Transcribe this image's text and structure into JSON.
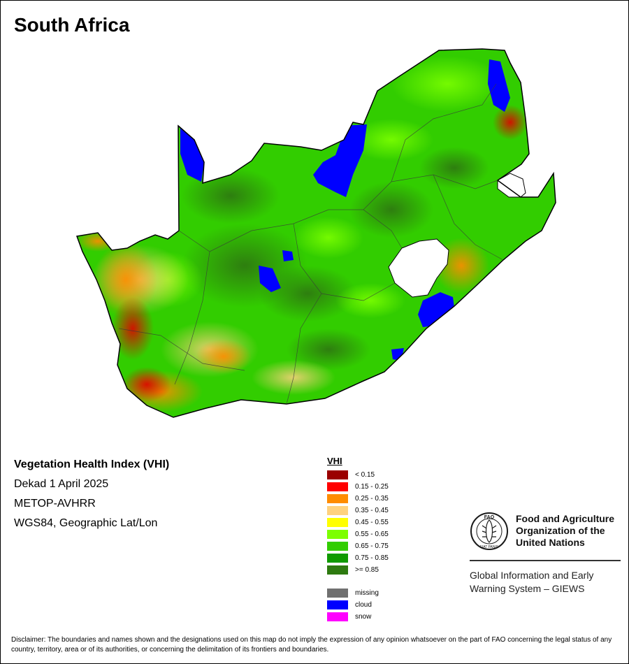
{
  "title": "South Africa",
  "info": {
    "heading": "Vegetation Health Index (VHI)",
    "date": "Dekad 1 April 2025",
    "sensor": "METOP-AVHRR",
    "projection": "WGS84, Geographic Lat/Lon"
  },
  "legend": {
    "title": "VHI",
    "classes": [
      {
        "label": "< 0.15",
        "color": "#9b0000"
      },
      {
        "label": "0.15 - 0.25",
        "color": "#ff0000"
      },
      {
        "label": "0.25 - 0.35",
        "color": "#ff8c00"
      },
      {
        "label": "0.35 - 0.45",
        "color": "#ffd27f"
      },
      {
        "label": "0.45 - 0.55",
        "color": "#ffff00"
      },
      {
        "label": "0.55 - 0.65",
        "color": "#7cff00"
      },
      {
        "label": "0.65 - 0.75",
        "color": "#32cd00"
      },
      {
        "label": "0.75 - 0.85",
        "color": "#109a00"
      },
      {
        "label": ">= 0.85",
        "color": "#2e7a10"
      }
    ],
    "special": [
      {
        "label": "missing",
        "color": "#707070"
      },
      {
        "label": "cloud",
        "color": "#0000ff"
      },
      {
        "label": "snow",
        "color": "#ff00ff"
      }
    ]
  },
  "org": {
    "name_line1": "Food and Agriculture",
    "name_line2": "Organization of the",
    "name_line3": "United Nations",
    "system_line1": "Global Information and Early",
    "system_line2": "Warning System – GIEWS",
    "logo_letters": "FAO",
    "logo_motto": "FIAT PANIS"
  },
  "disclaimer": "Disclaimer: The boundaries and names shown and the designations used on this map do not imply the expression of any opinion whatsoever on the part of FAO concerning the legal status of any country, territory, area or of its authorities, or concerning the delimitation of its frontiers and boundaries."
}
